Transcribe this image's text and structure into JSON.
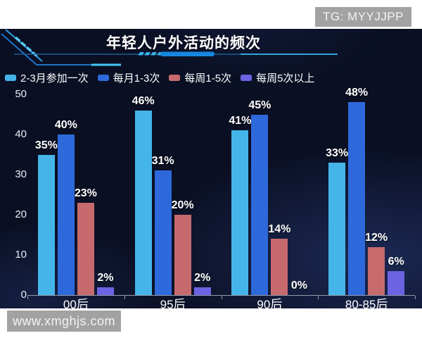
{
  "watermarks": {
    "top_right": "TG: MYYJJPP",
    "bottom_left": "www.xmghjs.com"
  },
  "chart_data": {
    "type": "bar",
    "title": "年轻人户外活动的频次",
    "categories": [
      "00后",
      "95后",
      "90后",
      "80-85后"
    ],
    "series": [
      {
        "name": "2-3月参加一次",
        "color": "#45b5e9",
        "values": [
          35,
          46,
          41,
          33
        ]
      },
      {
        "name": "每月1-3次",
        "color": "#2e69dc",
        "values": [
          40,
          31,
          45,
          48
        ]
      },
      {
        "name": "每周1-5次",
        "color": "#c76a6e",
        "values": [
          23,
          20,
          14,
          12
        ]
      },
      {
        "name": "每周5次以上",
        "color": "#6b63e2",
        "values": [
          2,
          2,
          0,
          6
        ]
      }
    ],
    "y_ticks": [
      0,
      10,
      20,
      30,
      40,
      50
    ],
    "ylim": [
      0,
      50
    ],
    "value_label_format": "{v}%",
    "legend_position": "top-left",
    "grid": false,
    "colors": {
      "panel_background": "#0a0f23",
      "axis": "#939bab",
      "text": "#ffffff"
    }
  }
}
